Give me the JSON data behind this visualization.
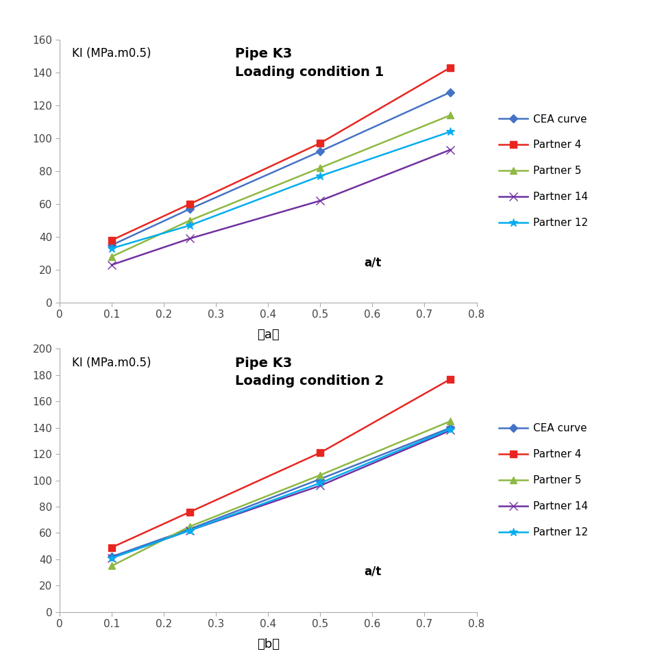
{
  "x": [
    0.1,
    0.25,
    0.5,
    0.75
  ],
  "chart_a": {
    "title_line1": "Pipe K3",
    "title_line2": "Loading condition 1",
    "ylabel": "KI (MPa.m0.5)",
    "xlabel": "a/t",
    "ylim": [
      0,
      160
    ],
    "yticks": [
      0,
      20,
      40,
      60,
      80,
      100,
      120,
      140,
      160
    ],
    "xlim": [
      0,
      0.8
    ],
    "xticks": [
      0,
      0.1,
      0.2,
      0.3,
      0.4,
      0.5,
      0.6,
      0.7,
      0.8
    ],
    "xticklabels": [
      "0",
      "0.1",
      "0.2",
      "0.3",
      "0.4",
      "0.5",
      "0.6",
      "0.7",
      "0.8"
    ],
    "series": {
      "CEA curve": {
        "y": [
          35,
          57,
          92,
          128
        ],
        "color": "#4472C4",
        "marker": "D",
        "markersize": 6
      },
      "Partner 4": {
        "y": [
          38,
          60,
          97,
          143
        ],
        "color": "#E8251F",
        "marker": "s",
        "markersize": 7
      },
      "Partner 5": {
        "y": [
          28,
          50,
          82,
          114
        ],
        "color": "#8DB843",
        "marker": "^",
        "markersize": 7
      },
      "Partner 14": {
        "y": [
          23,
          39,
          62,
          93
        ],
        "color": "#7030A0",
        "marker": "x",
        "markersize": 8
      },
      "Partner 12": {
        "y": [
          33,
          47,
          77,
          104
        ],
        "color": "#00ADEF",
        "marker": "*",
        "markersize": 9
      }
    },
    "label": "（a）"
  },
  "chart_b": {
    "title_line1": "Pipe K3",
    "title_line2": "Loading condition 2",
    "ylabel": "KI (MPa.m0.5)",
    "xlabel": "a/t",
    "ylim": [
      0,
      200
    ],
    "yticks": [
      0,
      20,
      40,
      60,
      80,
      100,
      120,
      140,
      160,
      180,
      200
    ],
    "xlim": [
      0,
      0.8
    ],
    "xticks": [
      0,
      0.1,
      0.2,
      0.3,
      0.4,
      0.5,
      0.6,
      0.7,
      0.8
    ],
    "xticklabels": [
      "0",
      "0.1",
      "0.2",
      "0.3",
      "0.4",
      "0.5",
      "0.6",
      "0.7",
      "0.8"
    ],
    "series": {
      "CEA curve": {
        "y": [
          42,
          63,
          101,
          140
        ],
        "color": "#4472C4",
        "marker": "D",
        "markersize": 6
      },
      "Partner 4": {
        "y": [
          49,
          76,
          121,
          177
        ],
        "color": "#E8251F",
        "marker": "s",
        "markersize": 7
      },
      "Partner 5": {
        "y": [
          35,
          65,
          104,
          145
        ],
        "color": "#8DB843",
        "marker": "^",
        "markersize": 7
      },
      "Partner 14": {
        "y": [
          41,
          62,
          96,
          138
        ],
        "color": "#7030A0",
        "marker": "x",
        "markersize": 8
      },
      "Partner 12": {
        "y": [
          41,
          62,
          98,
          139
        ],
        "color": "#00ADEF",
        "marker": "*",
        "markersize": 9
      }
    },
    "label": "（b）"
  },
  "legend_order": [
    "CEA curve",
    "Partner 4",
    "Partner 5",
    "Partner 14",
    "Partner 12"
  ],
  "background_color": "#FFFFFF",
  "spine_color": "#AAAAAA",
  "tick_color": "#444444",
  "tick_fontsize": 11,
  "ylabel_fontsize": 12,
  "title_fontsize": 14,
  "xlabel_fontsize": 12,
  "label_fontsize": 13,
  "legend_fontsize": 11
}
